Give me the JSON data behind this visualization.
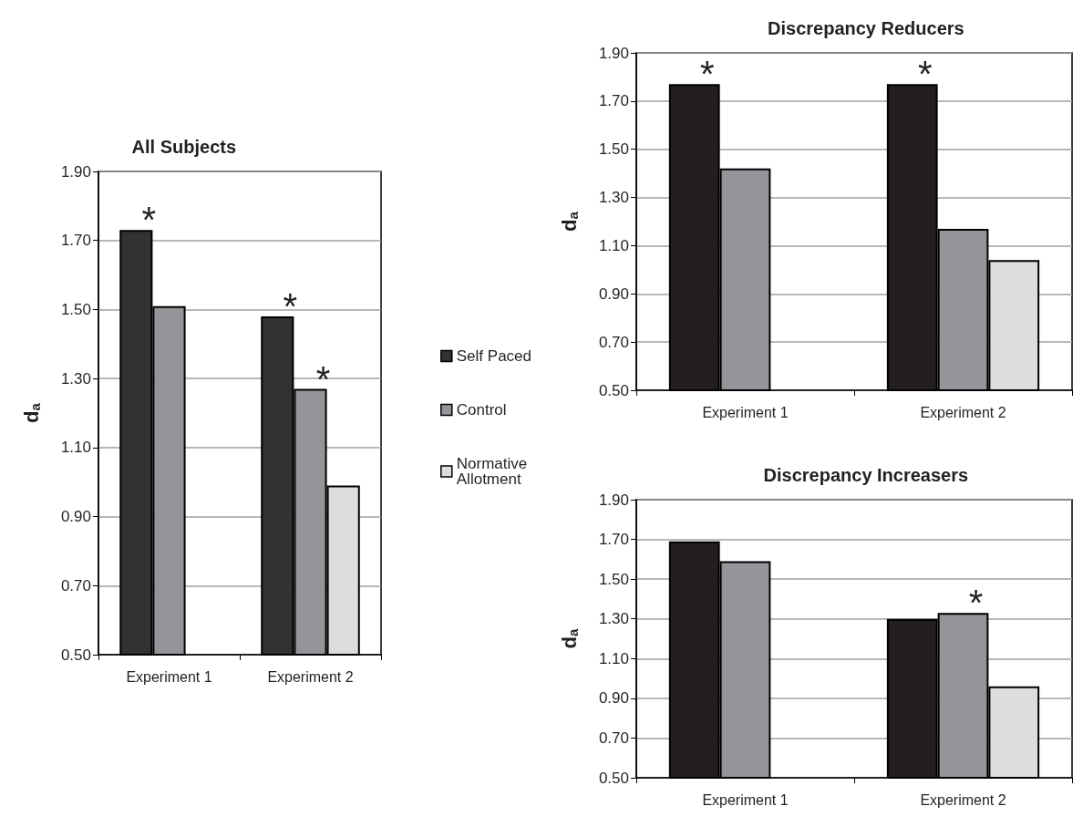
{
  "chart_data": [
    {
      "type": "bar",
      "title": "All Subjects",
      "ylabel": "d$_{a}$",
      "categories": [
        "Experiment 1",
        "Experiment 2"
      ],
      "series": [
        {
          "name": "Self Paced",
          "color": "#333132",
          "values": [
            1.73,
            1.48
          ]
        },
        {
          "name": "Control",
          "color": "#939598",
          "values": [
            1.51,
            1.27
          ]
        },
        {
          "name": "Normative Allotment",
          "color": "#dcddde",
          "values": [
            null,
            0.99
          ]
        }
      ],
      "ylim": [
        0.5,
        1.9
      ],
      "yticks": [
        {
          "value": 0.5,
          "label": "0.50"
        },
        {
          "value": 0.7,
          "label": "0.70"
        },
        {
          "value": 0.9,
          "label": "0.90"
        },
        {
          "value": 1.1,
          "label": "1.10"
        },
        {
          "value": 1.3,
          "label": "1.30"
        },
        {
          "value": 1.5,
          "label": "1.50"
        },
        {
          "value": 1.7,
          "label": "1.70"
        },
        {
          "value": 1.9,
          "label": "1.90"
        }
      ],
      "grid": "y",
      "legend": "right",
      "annotations": [
        "*",
        "*",
        {
          "text": "*",
          "x": "Experiment 2",
          "y": 1.27
        }
      ]
    },
    {
      "type": "bar",
      "title": "Discrepancy Reducers",
      "ylabel": "d$_{a}$",
      "categories": [
        "Experiment 1",
        "Experiment 2"
      ],
      "series": [
        {
          "color": "#231f20",
          "values": [
            1.77,
            1.77
          ]
        },
        {
          "color": "#939598",
          "values": [
            1.42,
            1.17
          ]
        },
        {
          "color": "#dcddde",
          "values": [
            null,
            1.04
          ]
        }
      ],
      "ylim": [
        0.5,
        1.9
      ],
      "yticks": [
        {
          "value": 0.5,
          "label": "0.50"
        },
        {
          "value": 0.7,
          "label": "0.70"
        },
        {
          "value": 0.9,
          "label": "0.90"
        },
        {
          "value": 1.1,
          "label": "1.10"
        },
        {
          "value": 1.3,
          "label": "1.30"
        },
        {
          "value": 1.5,
          "label": "1.50"
        },
        {
          "value": 1.7,
          "label": "1.70"
        },
        {
          "value": 1.9,
          "label": "1.90"
        }
      ],
      "grid": "y",
      "legend": false,
      "annotations": [
        "*",
        "*"
      ]
    },
    {
      "type": "bar",
      "title": "Discrepancy Increasers",
      "ylabel": "d$_{a}$",
      "categories": [
        "Experiment 1",
        "Experiment 2"
      ],
      "series": [
        {
          "color": "#231f20",
          "values": [
            1.69,
            1.3
          ]
        },
        {
          "color": "#939598",
          "values": [
            1.59,
            1.33
          ]
        },
        {
          "color": "#dcddde",
          "values": [
            null,
            0.96
          ]
        }
      ],
      "ylim": [
        0.5,
        1.9
      ],
      "yticks": [
        {
          "value": 0.5,
          "label": "0.50"
        },
        {
          "value": 0.7,
          "label": "0.70"
        },
        {
          "value": 0.9,
          "label": "0.90"
        },
        {
          "value": 1.1,
          "label": "1.10"
        },
        {
          "value": 1.3,
          "label": "1.30"
        },
        {
          "value": 1.5,
          "label": "1.50"
        },
        {
          "value": 1.7,
          "label": "1.70"
        },
        {
          "value": 1.9,
          "label": "1.90"
        }
      ],
      "grid": "y",
      "legend": false,
      "annotations": [
        {
          "text": "*",
          "x": "Experiment 2",
          "y": 1.33
        }
      ]
    }
  ]
}
